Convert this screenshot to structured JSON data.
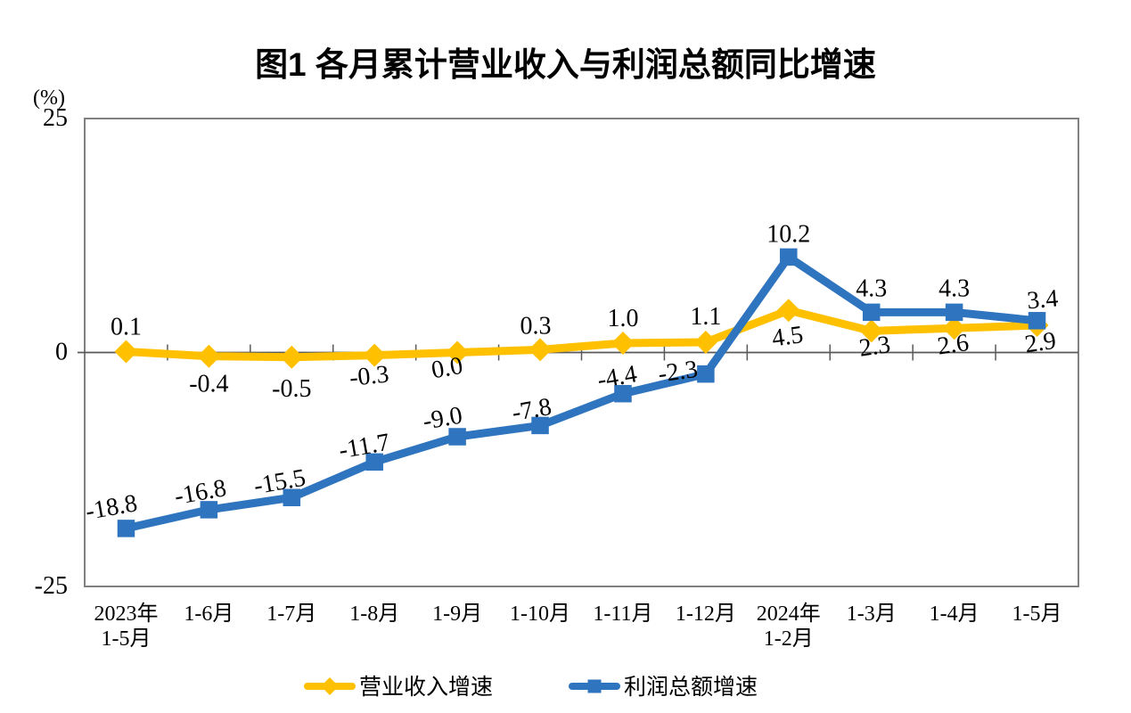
{
  "chart_data": {
    "type": "line",
    "title": "图1 各月累计营业收入与利润总额同比增速",
    "unit_label": "(%)",
    "categories": [
      [
        "2023年",
        "1-5月"
      ],
      [
        "1-6月"
      ],
      [
        "1-7月"
      ],
      [
        "1-8月"
      ],
      [
        "1-9月"
      ],
      [
        "1-10月"
      ],
      [
        "1-11月"
      ],
      [
        "1-12月"
      ],
      [
        "2024年",
        "1-2月"
      ],
      [
        "1-3月"
      ],
      [
        "1-4月"
      ],
      [
        "1-5月"
      ]
    ],
    "y_axis": {
      "min": -25,
      "max": 25,
      "tick_values": [
        25,
        0,
        -25
      ],
      "tick_labels": [
        "25",
        "0",
        "-25"
      ]
    },
    "grid": "off",
    "legend_position": "bottom",
    "axis_color": "#808080",
    "zero_line_color": "#595959",
    "series": [
      {
        "name": "营业收入增速",
        "color": "#FFC000",
        "marker": "diamond",
        "values": [
          0.1,
          -0.4,
          -0.5,
          -0.3,
          0.0,
          0.3,
          1.0,
          1.1,
          4.5,
          2.3,
          2.6,
          2.9
        ],
        "labels": [
          "0.1",
          "-0.4",
          "-0.5",
          "-0.3",
          "0.0",
          "0.3",
          "1.0",
          "1.1",
          "4.5",
          "2.3",
          "2.6",
          "2.9"
        ],
        "label_offsets": [
          [
            0,
            -19
          ],
          [
            0,
            40
          ],
          [
            0,
            44
          ],
          [
            -5,
            32
          ],
          [
            -10,
            26
          ],
          [
            -5,
            -18
          ],
          [
            0,
            -19
          ],
          [
            0,
            -20
          ],
          [
            0,
            38
          ],
          [
            5,
            26
          ],
          [
            0,
            27
          ],
          [
            5,
            28
          ]
        ],
        "label_rotations": [
          0,
          0,
          0,
          -6,
          -10,
          0,
          0,
          0,
          -8,
          -8,
          -8,
          -8
        ]
      },
      {
        "name": "利润总额增速",
        "color": "#2F74BE",
        "marker": "square",
        "values": [
          -18.8,
          -16.8,
          -15.5,
          -11.7,
          -9.0,
          -7.8,
          -4.4,
          -2.3,
          10.2,
          4.3,
          4.3,
          3.4
        ],
        "labels": [
          "-18.8",
          "-16.8",
          "-15.5",
          "-11.7",
          "-9.0",
          "-7.8",
          "-4.4",
          "-2.3",
          "10.2",
          "4.3",
          "4.3",
          "3.4"
        ],
        "label_offsets": [
          [
            -15,
            -15
          ],
          [
            -8,
            -11
          ],
          [
            -12,
            -9
          ],
          [
            -10,
            -9
          ],
          [
            -15,
            -12
          ],
          [
            -8,
            -9
          ],
          [
            -5,
            -10
          ],
          [
            -30,
            6
          ],
          [
            0,
            -17
          ],
          [
            0,
            -18
          ],
          [
            0,
            -18
          ],
          [
            7,
            -15
          ]
        ],
        "label_rotations": [
          -10,
          -10,
          -10,
          -10,
          -10,
          -10,
          -10,
          -8,
          0,
          0,
          0,
          -5
        ]
      }
    ]
  }
}
